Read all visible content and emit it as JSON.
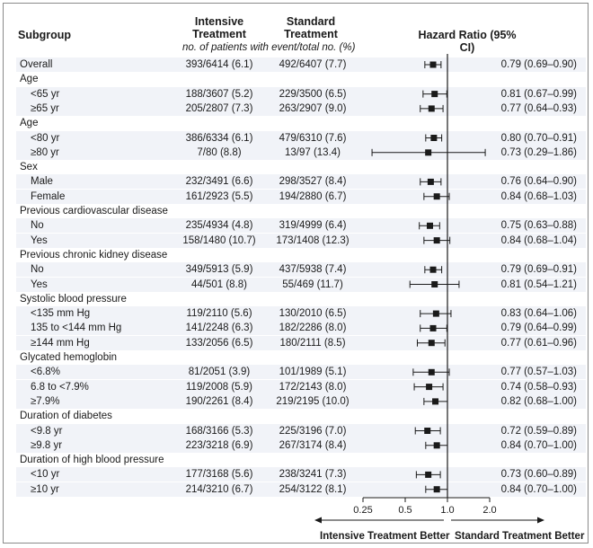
{
  "headers": {
    "subgroup": "Subgroup",
    "intensive": "Intensive Treatment",
    "standard": "Standard Treatment",
    "note": "no. of patients with event/total no. (%)",
    "hazard": "Hazard Ratio (95% CI)"
  },
  "footer": {
    "left": "Intensive Treatment Better",
    "right": "Standard Treatment Better"
  },
  "chart_data": {
    "type": "forest",
    "xscale": "log2",
    "xlim": [
      0.25,
      2.0
    ],
    "xticks": [
      0.25,
      0.5,
      1.0,
      2.0
    ],
    "tick_labels": [
      "0.25",
      "0.5",
      "1.0",
      "2.0"
    ],
    "reference_line": 1.0,
    "rows": [
      {
        "kind": "data",
        "label": "Overall",
        "int": "393/6414 (6.1)",
        "std": "492/6407 (7.7)",
        "hr_text": "0.79 (0.69–0.90)",
        "hr": 0.79,
        "lo": 0.69,
        "hi": 0.9,
        "indent": false
      },
      {
        "kind": "header",
        "label": "Age"
      },
      {
        "kind": "data",
        "label": "<65 yr",
        "int": "188/3607 (5.2)",
        "std": "229/3500 (6.5)",
        "hr_text": "0.81 (0.67–0.99)",
        "hr": 0.81,
        "lo": 0.67,
        "hi": 0.99,
        "indent": true
      },
      {
        "kind": "data",
        "label": "≥65 yr",
        "int": "205/2807 (7.3)",
        "std": "263/2907 (9.0)",
        "hr_text": "0.77 (0.64–0.93)",
        "hr": 0.77,
        "lo": 0.64,
        "hi": 0.93,
        "indent": true
      },
      {
        "kind": "header",
        "label": "Age"
      },
      {
        "kind": "data",
        "label": "<80 yr",
        "int": "386/6334 (6.1)",
        "std": "479/6310 (7.6)",
        "hr_text": "0.80 (0.70–0.91)",
        "hr": 0.8,
        "lo": 0.7,
        "hi": 0.91,
        "indent": true
      },
      {
        "kind": "data",
        "label": "≥80 yr",
        "int": "7/80 (8.8)",
        "std": "13/97 (13.4)",
        "hr_text": "0.73 (0.29–1.86)",
        "hr": 0.73,
        "lo": 0.29,
        "hi": 1.86,
        "indent": true
      },
      {
        "kind": "header",
        "label": "Sex"
      },
      {
        "kind": "data",
        "label": "Male",
        "int": "232/3491 (6.6)",
        "std": "298/3527 (8.4)",
        "hr_text": "0.76 (0.64–0.90)",
        "hr": 0.76,
        "lo": 0.64,
        "hi": 0.9,
        "indent": true
      },
      {
        "kind": "data",
        "label": "Female",
        "int": "161/2923 (5.5)",
        "std": "194/2880 (6.7)",
        "hr_text": "0.84 (0.68–1.03)",
        "hr": 0.84,
        "lo": 0.68,
        "hi": 1.03,
        "indent": true
      },
      {
        "kind": "header",
        "label": "Previous cardiovascular disease"
      },
      {
        "kind": "data",
        "label": "No",
        "int": "235/4934 (4.8)",
        "std": "319/4999 (6.4)",
        "hr_text": "0.75 (0.63–0.88)",
        "hr": 0.75,
        "lo": 0.63,
        "hi": 0.88,
        "indent": true
      },
      {
        "kind": "data",
        "label": "Yes",
        "int": "158/1480 (10.7)",
        "std": "173/1408 (12.3)",
        "hr_text": "0.84 (0.68–1.04)",
        "hr": 0.84,
        "lo": 0.68,
        "hi": 1.04,
        "indent": true
      },
      {
        "kind": "header",
        "label": "Previous chronic kidney disease"
      },
      {
        "kind": "data",
        "label": "No",
        "int": "349/5913 (5.9)",
        "std": "437/5938 (7.4)",
        "hr_text": "0.79 (0.69–0.91)",
        "hr": 0.79,
        "lo": 0.69,
        "hi": 0.91,
        "indent": true
      },
      {
        "kind": "data",
        "label": "Yes",
        "int": "44/501 (8.8)",
        "std": "55/469 (11.7)",
        "hr_text": "0.81 (0.54–1.21)",
        "hr": 0.81,
        "lo": 0.54,
        "hi": 1.21,
        "indent": true
      },
      {
        "kind": "header",
        "label": "Systolic blood pressure"
      },
      {
        "kind": "data",
        "label": "<135 mm Hg",
        "int": "119/2110 (5.6)",
        "std": "130/2010 (6.5)",
        "hr_text": "0.83 (0.64–1.06)",
        "hr": 0.83,
        "lo": 0.64,
        "hi": 1.06,
        "indent": true
      },
      {
        "kind": "data",
        "label": "135 to <144 mm Hg",
        "int": "141/2248 (6.3)",
        "std": "182/2286 (8.0)",
        "hr_text": "0.79 (0.64–0.99)",
        "hr": 0.79,
        "lo": 0.64,
        "hi": 0.99,
        "indent": true
      },
      {
        "kind": "data",
        "label": "≥144 mm Hg",
        "int": "133/2056 (6.5)",
        "std": "180/2111 (8.5)",
        "hr_text": "0.77 (0.61–0.96)",
        "hr": 0.77,
        "lo": 0.61,
        "hi": 0.96,
        "indent": true
      },
      {
        "kind": "header",
        "label": "Glycated hemoglobin"
      },
      {
        "kind": "data",
        "label": "<6.8%",
        "int": "81/2051 (3.9)",
        "std": "101/1989 (5.1)",
        "hr_text": "0.77 (0.57–1.03)",
        "hr": 0.77,
        "lo": 0.57,
        "hi": 1.03,
        "indent": true
      },
      {
        "kind": "data",
        "label": "6.8 to <7.9%",
        "int": "119/2008 (5.9)",
        "std": "172/2143 (8.0)",
        "hr_text": "0.74 (0.58–0.93)",
        "hr": 0.74,
        "lo": 0.58,
        "hi": 0.93,
        "indent": true
      },
      {
        "kind": "data",
        "label": "≥7.9%",
        "int": "190/2261 (8.4)",
        "std": "219/2195 (10.0)",
        "hr_text": "0.82 (0.68–1.00)",
        "hr": 0.82,
        "lo": 0.68,
        "hi": 1.0,
        "indent": true
      },
      {
        "kind": "header",
        "label": "Duration of diabetes"
      },
      {
        "kind": "data",
        "label": "<9.8 yr",
        "int": "168/3166 (5.3)",
        "std": "225/3196 (7.0)",
        "hr_text": "0.72 (0.59–0.89)",
        "hr": 0.72,
        "lo": 0.59,
        "hi": 0.89,
        "indent": true
      },
      {
        "kind": "data",
        "label": "≥9.8 yr",
        "int": "223/3218 (6.9)",
        "std": "267/3174 (8.4)",
        "hr_text": "0.84 (0.70–1.00)",
        "hr": 0.84,
        "lo": 0.7,
        "hi": 1.0,
        "indent": true
      },
      {
        "kind": "header",
        "label": "Duration of high blood pressure"
      },
      {
        "kind": "data",
        "label": "<10 yr",
        "int": "177/3168 (5.6)",
        "std": "238/3241 (7.3)",
        "hr_text": "0.73 (0.60–0.89)",
        "hr": 0.73,
        "lo": 0.6,
        "hi": 0.89,
        "indent": true
      },
      {
        "kind": "data",
        "label": "≥10 yr",
        "int": "214/3210 (6.7)",
        "std": "254/3122 (8.1)",
        "hr_text": "0.84 (0.70–1.00)",
        "hr": 0.84,
        "lo": 0.7,
        "hi": 1.0,
        "indent": true
      }
    ]
  }
}
